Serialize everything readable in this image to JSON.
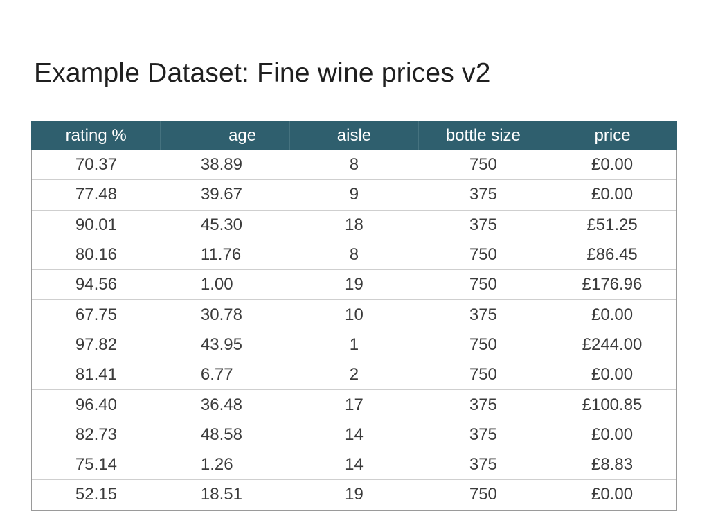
{
  "title": "Example Dataset: Fine wine prices v2",
  "colors": {
    "header_bg": "#2f5f6e",
    "header_text": "#ffffff"
  },
  "columns": [
    "rating %",
    "age",
    "aisle",
    "bottle size",
    "price"
  ],
  "rows": [
    [
      "70.37",
      "38.89",
      "8",
      "750",
      "£0.00"
    ],
    [
      "77.48",
      "39.67",
      "9",
      "375",
      "£0.00"
    ],
    [
      "90.01",
      "45.30",
      "18",
      "375",
      "£51.25"
    ],
    [
      "80.16",
      "11.76",
      "8",
      "750",
      "£86.45"
    ],
    [
      "94.56",
      "1.00",
      "19",
      "750",
      "£176.96"
    ],
    [
      "67.75",
      "30.78",
      "10",
      "375",
      "£0.00"
    ],
    [
      "97.82",
      "43.95",
      "1",
      "750",
      "£244.00"
    ],
    [
      "81.41",
      "6.77",
      "2",
      "750",
      "£0.00"
    ],
    [
      "96.40",
      "36.48",
      "17",
      "375",
      "£100.85"
    ],
    [
      "82.73",
      "48.58",
      "14",
      "375",
      "£0.00"
    ],
    [
      "75.14",
      "1.26",
      "14",
      "375",
      "£8.83"
    ],
    [
      "52.15",
      "18.51",
      "19",
      "750",
      "£0.00"
    ]
  ]
}
